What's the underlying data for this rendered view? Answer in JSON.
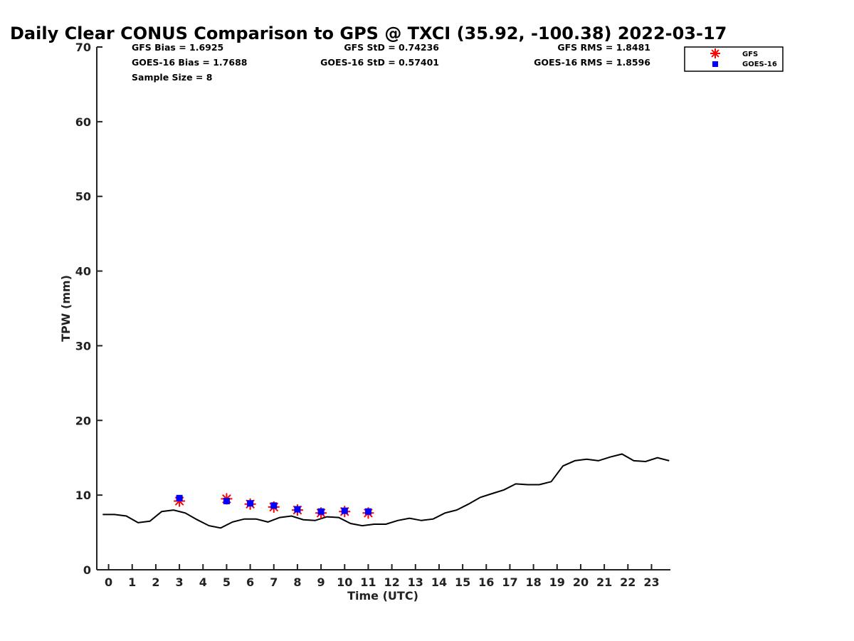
{
  "chart_data": {
    "type": "line",
    "title": "Daily Clear CONUS Comparison to GPS @ TXCI (35.92, -100.38) 2022-03-17",
    "xlabel": "Time (UTC)",
    "ylabel": "TPW (mm)",
    "xlim": [
      -0.5,
      23.8
    ],
    "ylim": [
      0,
      70
    ],
    "x_ticks": [
      "0",
      "1",
      "2",
      "3",
      "4",
      "5",
      "6",
      "7",
      "8",
      "9",
      "10",
      "11",
      "12",
      "13",
      "14",
      "15",
      "16",
      "17",
      "18",
      "19",
      "20",
      "21",
      "22",
      "23"
    ],
    "y_ticks": [
      "0",
      "10",
      "20",
      "30",
      "40",
      "50",
      "60",
      "70"
    ],
    "grid": false,
    "legend_position": "top-right",
    "stats": [
      {
        "text": "GFS Bias = 1.6925"
      },
      {
        "text": "GFS StD = 0.74236"
      },
      {
        "text": "GFS RMS = 1.8481"
      },
      {
        "text": "GOES-16 Bias = 1.7688"
      },
      {
        "text": "GOES-16 StD = 0.57401"
      },
      {
        "text": "GOES-16 RMS = 1.8596"
      },
      {
        "text": "Sample Size = 8"
      }
    ],
    "series": [
      {
        "style": "line",
        "color": "#000000",
        "x": [
          -0.25,
          0.25,
          0.75,
          1.25,
          1.75,
          2.25,
          2.75,
          3.25,
          3.75,
          4.25,
          4.75,
          5.25,
          5.75,
          6.25,
          6.75,
          7.25,
          7.75,
          8.25,
          8.75,
          9.25,
          9.75,
          10.25,
          10.75,
          11.25,
          11.75,
          12.25,
          12.75,
          13.25,
          13.75,
          14.25,
          14.75,
          15.25,
          15.75,
          16.25,
          16.75,
          17.25,
          17.75,
          18.25,
          18.75,
          19.25,
          19.75,
          20.25,
          20.75,
          21.25,
          21.75,
          22.25,
          22.75,
          23.25,
          23.75
        ],
        "values": [
          7.4,
          7.4,
          7.2,
          6.3,
          6.5,
          7.8,
          8.0,
          7.6,
          6.7,
          5.9,
          5.6,
          6.4,
          6.8,
          6.8,
          6.4,
          7.0,
          7.2,
          6.7,
          6.6,
          7.1,
          7.0,
          6.2,
          5.9,
          6.1,
          6.1,
          6.6,
          6.9,
          6.6,
          6.8,
          7.6,
          8.0,
          8.8,
          9.7,
          10.2,
          10.7,
          11.5,
          11.4,
          11.4,
          11.8,
          13.9,
          14.6,
          14.8,
          14.6,
          15.1,
          15.5,
          14.6,
          14.5,
          15.0,
          14.6
        ]
      },
      {
        "name": "GFS",
        "style": "asterisk",
        "color": "#ff0000",
        "x": [
          3,
          5,
          6,
          7,
          8,
          9,
          10,
          11
        ],
        "values": [
          9.2,
          9.5,
          8.8,
          8.4,
          8.0,
          7.6,
          7.8,
          7.6
        ]
      },
      {
        "name": "GOES-16",
        "style": "square",
        "color": "#0000ff",
        "x": [
          3,
          5,
          6,
          7,
          8,
          9,
          10,
          11
        ],
        "values": [
          9.6,
          9.2,
          8.9,
          8.6,
          8.1,
          7.8,
          7.9,
          7.8
        ]
      }
    ]
  }
}
